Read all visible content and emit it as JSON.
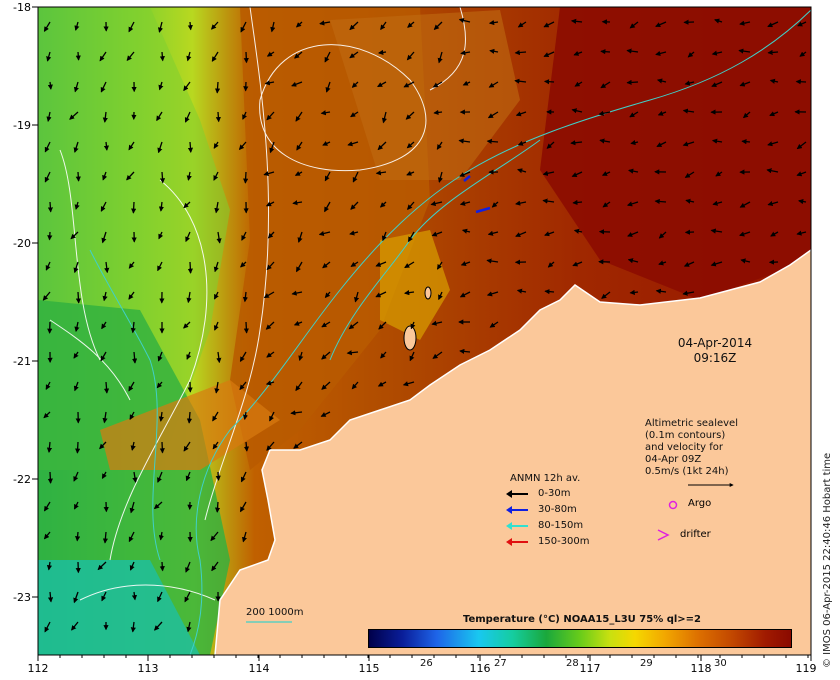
{
  "map": {
    "lon_ticks": [
      "112",
      "113",
      "114",
      "115",
      "116",
      "117",
      "118",
      "119"
    ],
    "lat_ticks": [
      "-18",
      "-19",
      "-20",
      "-21",
      "-22",
      "-23"
    ],
    "colors": {
      "land": "#fbc89a",
      "hot": "#9a1200",
      "warm": "#b04a00",
      "mid": "#c8e010",
      "cool": "#22b040",
      "cold": "#1bb0a0",
      "coast": "#ffffff"
    }
  },
  "timestamp": {
    "date": "04-Apr-2014",
    "time": "09:16Z"
  },
  "altimetry": {
    "lines": [
      "Altimetric sealevel",
      "(0.1m contours)",
      "and velocity for",
      "04-Apr 09Z",
      "0.5m/s (1kt 24h)"
    ]
  },
  "legend": {
    "title": "ANMN 12h av.",
    "items": [
      {
        "label": "0-30m",
        "color": "#000000"
      },
      {
        "label": "30-80m",
        "color": "#1020e0"
      },
      {
        "label": "80-150m",
        "color": "#30e0d0"
      },
      {
        "label": "150-300m",
        "color": "#e01010"
      }
    ],
    "argo": "Argo",
    "drifter": "drifter",
    "argo_color": "#e020e0",
    "drifter_color": "#e020e0"
  },
  "colorbar": {
    "title": "Temperature (°C) NOAA15_L3U 75% ql>=2",
    "ticks": [
      "26",
      "27",
      "28",
      "29",
      "30"
    ]
  },
  "scale_label": "200  1000m",
  "credit": "© IMOS 06-Apr-2015 22:40:46 Hobart time"
}
